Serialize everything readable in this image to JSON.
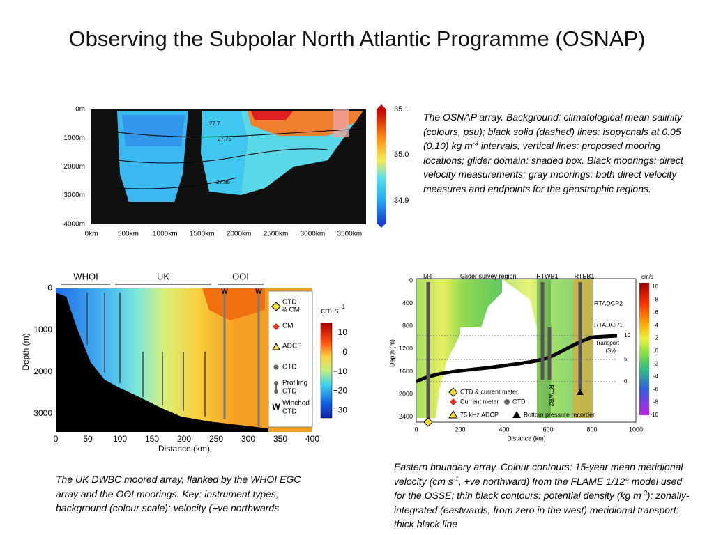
{
  "title": "Observing the Subpolar North Atlantic Programme (OSNAP)",
  "figures": [
    {
      "y_ticks": [
        "0m",
        "1000m",
        "2000m",
        "3000m",
        "4000m"
      ],
      "x_ticks": [
        "0km",
        "500km",
        "1000km",
        "1500km",
        "2000km",
        "2500km",
        "3000km",
        "3500km"
      ],
      "colorbar_ticks": [
        "35.1",
        "35.0",
        "34.9"
      ],
      "contour_labels": [
        "27.7",
        "27.75",
        "27.85"
      ],
      "caption": [
        "The OSNAP array. Background: climatological mean salinity (colours, psu); black solid (dashed) lines: isopycnals at 0.05 (0.10) kg m",
        "-3",
        " intervals; vertical lines: proposed mooring locations; glider domain: shaded box. Black moorings: direct velocity measurements; gray moorings: both direct velocity measures and endpoints for the geostrophic regions."
      ]
    },
    {
      "header_labels": [
        "WHOI",
        "UK",
        "OOI"
      ],
      "y_label": "Depth (m)",
      "y_ticks": [
        "0",
        "1000",
        "2000",
        "3000"
      ],
      "x_label": "Distance (km)",
      "x_ticks": [
        "0",
        "50",
        "100",
        "150",
        "200",
        "250",
        "300",
        "350",
        "400"
      ],
      "mooring_labels": [
        "W",
        "W"
      ],
      "legend": [
        [
          "CTD",
          "& CM"
        ],
        [
          "CM"
        ],
        [
          "ADCP"
        ],
        [
          "CTD"
        ],
        [
          "Profiling",
          "CTD"
        ],
        [
          "Winched",
          "CTD"
        ]
      ],
      "legend_symbol_w": "W",
      "colorbar_title": [
        "cm s",
        "-1"
      ],
      "colorbar_ticks": [
        "10",
        "0",
        "−10",
        "−20",
        "−30"
      ],
      "caption": [
        "The UK DWBC moored array, flanked by the WHOI EGC array and the OOI moorings.  Key: instrument types; background (colour scale):  velocity (+ve northwards"
      ]
    },
    {
      "top_labels": [
        "M4",
        "Glider survey region",
        "RTWB1",
        "RTEB1"
      ],
      "side_labels": [
        "RTADCP2",
        "RTADCP1"
      ],
      "vertical_label": "RTWB2",
      "transport_title": [
        "Transport",
        "(Sv)"
      ],
      "transport_ticks": [
        "10",
        "5",
        "0"
      ],
      "y_label": "Depth (m)",
      "y_ticks": [
        "0",
        "400",
        "800",
        "1200",
        "1600",
        "2000",
        "2400"
      ],
      "x_label": "Distance (km)",
      "x_ticks": [
        "0",
        "200",
        "400",
        "600",
        "800",
        "1000"
      ],
      "legend": [
        "CTD & current meter",
        "Current meter",
        "CTD",
        "75 kHz ADCP",
        "Bottom pressure recorder"
      ],
      "colorbar_title": "cm/s",
      "colorbar_ticks": [
        "10",
        "8",
        "6",
        "4",
        "2",
        "0",
        "-2",
        "-4",
        "-6",
        "-8",
        "-10"
      ],
      "caption": [
        "Eastern boundary array. Colour contours: 15-year mean meridional velocity (cm s",
        "-1",
        ", +ve northward) from the FLAME 1/12° model used for the OSSE; thin black contours: potential density (kg m",
        "-3",
        "); zonally-integrated (eastwards, from zero in the west) meridional transport: thick black line"
      ]
    }
  ]
}
